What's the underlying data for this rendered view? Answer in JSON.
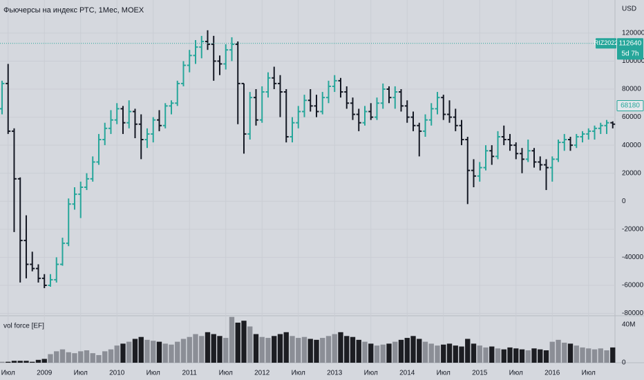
{
  "chart_data": {
    "type": "ohlc",
    "title": "Фьючерсы на индекс РТС, 1Мес, MOEX",
    "currency_label": "USD",
    "up_color": "#26a69a",
    "down_color": "#131722",
    "grid": true,
    "open": [
      66000,
      84000,
      50000,
      16000,
      -28000,
      -45000,
      -48000,
      -55000,
      -60000,
      -56000,
      -45000,
      -30000,
      -2000,
      5000,
      10000,
      16000,
      28000,
      44000,
      52000,
      58000,
      66000,
      56000,
      64000,
      55000,
      44000,
      48000,
      58000,
      54000,
      68000,
      70000,
      84000,
      97000,
      104000,
      110000,
      114000,
      112000,
      100000,
      98000,
      108000,
      112000,
      84000,
      48000,
      74000,
      58000,
      78000,
      88000,
      84000,
      78000,
      46000,
      56000,
      64000,
      72000,
      68000,
      64000,
      74000,
      82000,
      86000,
      78000,
      70000,
      62000,
      56000,
      64000,
      60000,
      70000,
      80000,
      74000,
      78000,
      68000,
      60000,
      54000,
      50000,
      58000,
      66000,
      74000,
      62000,
      60000,
      54000,
      44000,
      22000,
      18000,
      24000,
      36000,
      32000,
      46000,
      44000,
      40000,
      34000,
      30000,
      36000,
      28000,
      26000,
      24000,
      30000,
      42000,
      44000,
      40000,
      46000,
      48000,
      50000,
      52000,
      54000,
      56000
    ],
    "high": [
      86000,
      98000,
      52000,
      17000,
      -10000,
      -36000,
      -45000,
      -52000,
      -52000,
      -40000,
      -26000,
      2000,
      10000,
      14000,
      20000,
      32000,
      48000,
      56000,
      65000,
      70000,
      68000,
      72000,
      66000,
      62000,
      52000,
      60000,
      65000,
      70000,
      72000,
      86000,
      100000,
      108000,
      115000,
      118000,
      122000,
      118000,
      104000,
      112000,
      117000,
      114000,
      84000,
      78000,
      80000,
      82000,
      92000,
      96000,
      90000,
      80000,
      60000,
      68000,
      76000,
      80000,
      76000,
      78000,
      86000,
      90000,
      88000,
      82000,
      74000,
      66000,
      68000,
      70000,
      74000,
      84000,
      82000,
      82000,
      80000,
      72000,
      64000,
      56000,
      62000,
      70000,
      78000,
      76000,
      72000,
      66000,
      58000,
      46000,
      30000,
      28000,
      40000,
      40000,
      50000,
      54000,
      48000,
      42000,
      38000,
      44000,
      38000,
      32000,
      30000,
      32000,
      44000,
      48000,
      46000,
      48000,
      50000,
      52000,
      54000,
      56000,
      58000,
      57000
    ],
    "low": [
      62000,
      48000,
      -22000,
      -58000,
      -55000,
      -50000,
      -58000,
      -62000,
      -61000,
      -58000,
      -46000,
      -32000,
      -6000,
      -12000,
      8000,
      14000,
      26000,
      40000,
      48000,
      55000,
      48000,
      52000,
      45000,
      30000,
      38000,
      42000,
      50000,
      52000,
      62000,
      68000,
      82000,
      92000,
      98000,
      102000,
      108000,
      86000,
      90000,
      94000,
      100000,
      55000,
      34000,
      44000,
      54000,
      56000,
      74000,
      80000,
      60000,
      42000,
      42000,
      52000,
      60000,
      64000,
      60000,
      62000,
      70000,
      78000,
      74000,
      66000,
      58000,
      50000,
      54000,
      58000,
      58000,
      66000,
      70000,
      66000,
      64000,
      56000,
      50000,
      32000,
      46000,
      54000,
      62000,
      58000,
      56000,
      50000,
      40000,
      -2000,
      10000,
      14000,
      22000,
      26000,
      30000,
      40000,
      36000,
      30000,
      20000,
      28000,
      24000,
      22000,
      8000,
      14000,
      28000,
      36000,
      36000,
      38000,
      42000,
      44000,
      44000,
      48000,
      48000,
      52000
    ],
    "close": [
      84000,
      50000,
      16000,
      -28000,
      -45000,
      -48000,
      -55000,
      -60000,
      -56000,
      -45000,
      -30000,
      -2000,
      5000,
      10000,
      16000,
      28000,
      44000,
      52000,
      58000,
      66000,
      56000,
      64000,
      55000,
      44000,
      48000,
      58000,
      54000,
      68000,
      70000,
      84000,
      97000,
      104000,
      110000,
      114000,
      112000,
      100000,
      98000,
      108000,
      112000,
      84000,
      48000,
      74000,
      58000,
      78000,
      88000,
      84000,
      78000,
      46000,
      56000,
      64000,
      72000,
      68000,
      64000,
      74000,
      82000,
      86000,
      78000,
      70000,
      62000,
      56000,
      64000,
      60000,
      70000,
      80000,
      74000,
      78000,
      68000,
      60000,
      54000,
      50000,
      58000,
      66000,
      74000,
      62000,
      60000,
      54000,
      44000,
      22000,
      18000,
      24000,
      36000,
      32000,
      46000,
      44000,
      40000,
      34000,
      30000,
      36000,
      28000,
      26000,
      24000,
      30000,
      42000,
      44000,
      40000,
      46000,
      48000,
      50000,
      52000,
      54000,
      56000,
      55000
    ],
    "ylim": [
      -81700,
      143600
    ],
    "yticks": [
      120000,
      100000,
      80000,
      60000,
      40000,
      20000,
      0,
      -20000,
      -40000,
      -60000,
      -80000
    ],
    "xlim": [
      -0.34,
      101.37
    ],
    "xticks": [
      {
        "value": 1,
        "label": "Июл"
      },
      {
        "value": 7,
        "label": "2009"
      },
      {
        "value": 13,
        "label": "Июл"
      },
      {
        "value": 19,
        "label": "2010"
      },
      {
        "value": 25,
        "label": "Июл"
      },
      {
        "value": 31,
        "label": "2011"
      },
      {
        "value": 37,
        "label": "Июл"
      },
      {
        "value": 43,
        "label": "2012"
      },
      {
        "value": 49,
        "label": "Июл"
      },
      {
        "value": 55,
        "label": "2013"
      },
      {
        "value": 61,
        "label": "Июл"
      },
      {
        "value": 67,
        "label": "2014"
      },
      {
        "value": 73,
        "label": "Июл"
      },
      {
        "value": 79,
        "label": "2015"
      },
      {
        "value": 85,
        "label": "Июл"
      },
      {
        "value": 91,
        "label": "2016"
      },
      {
        "value": 97,
        "label": "Июл"
      }
    ],
    "price_line": {
      "symbol": "RIZ2022",
      "value": 112640,
      "countdown": "5d 7h",
      "color": "#26a69a"
    },
    "marker": {
      "value": 68180,
      "color": "#26a69a"
    },
    "volume_panel": {
      "title": "vol force [EF]",
      "values": [
        1,
        1,
        2,
        2,
        2,
        1,
        3,
        4,
        9,
        12,
        14,
        11,
        10,
        12,
        13,
        10,
        8,
        12,
        14,
        18,
        20,
        22,
        25,
        27,
        24,
        23,
        22,
        20,
        19,
        22,
        25,
        27,
        30,
        28,
        32,
        30,
        28,
        26,
        48,
        42,
        44,
        38,
        30,
        27,
        26,
        28,
        30,
        32,
        28,
        26,
        27,
        25,
        24,
        26,
        28,
        30,
        32,
        28,
        27,
        24,
        22,
        20,
        18,
        19,
        20,
        22,
        24,
        26,
        28,
        25,
        22,
        20,
        18,
        19,
        20,
        18,
        17,
        25,
        20,
        18,
        16,
        17,
        15,
        14,
        16,
        15,
        14,
        13,
        15,
        14,
        13,
        22,
        24,
        21,
        20,
        18,
        16,
        15,
        14,
        15,
        13,
        16
      ],
      "ylim": [
        0,
        48.5
      ],
      "yticks": [
        0,
        {
          "value": 40,
          "label": "40M"
        }
      ],
      "up_color": "#8b8e96",
      "down_color": "#1c1d22"
    }
  }
}
